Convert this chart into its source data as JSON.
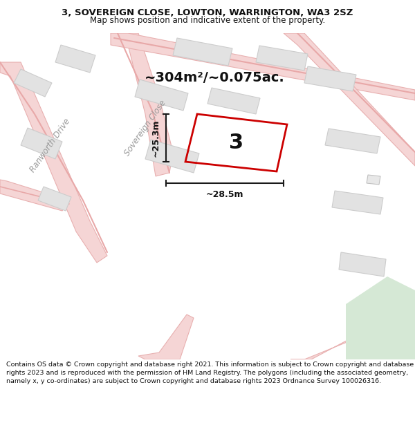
{
  "title_line1": "3, SOVEREIGN CLOSE, LOWTON, WARRINGTON, WA3 2SZ",
  "title_line2": "Map shows position and indicative extent of the property.",
  "area_text": "~304m²/~0.075ac.",
  "property_number": "3",
  "dim_vertical": "~25.3m",
  "dim_horizontal": "~28.5m",
  "street_name1": "Ranworth Drive",
  "street_name2": "Sovereign Close",
  "footer_text": "Contains OS data © Crown copyright and database right 2021. This information is subject to Crown copyright and database rights 2023 and is reproduced with the permission of HM Land Registry. The polygons (including the associated geometry, namely x, y co-ordinates) are subject to Crown copyright and database rights 2023 Ordnance Survey 100026316.",
  "map_bg": "#f2f2f2",
  "road_fill": "#f5d5d5",
  "road_edge": "#e8b0b0",
  "road_center": "#f0c0c0",
  "building_fill": "#e2e2e2",
  "building_edge": "#cccccc",
  "plot_edge_color": "#cc0000",
  "plot_lw": 2.0,
  "header_bg": "#ffffff",
  "footer_bg": "#ffffff",
  "dim_line_color": "#1a1a1a",
  "text_color": "#111111",
  "street_label_color": "#999999",
  "green_area_color": "#d5e8d5"
}
